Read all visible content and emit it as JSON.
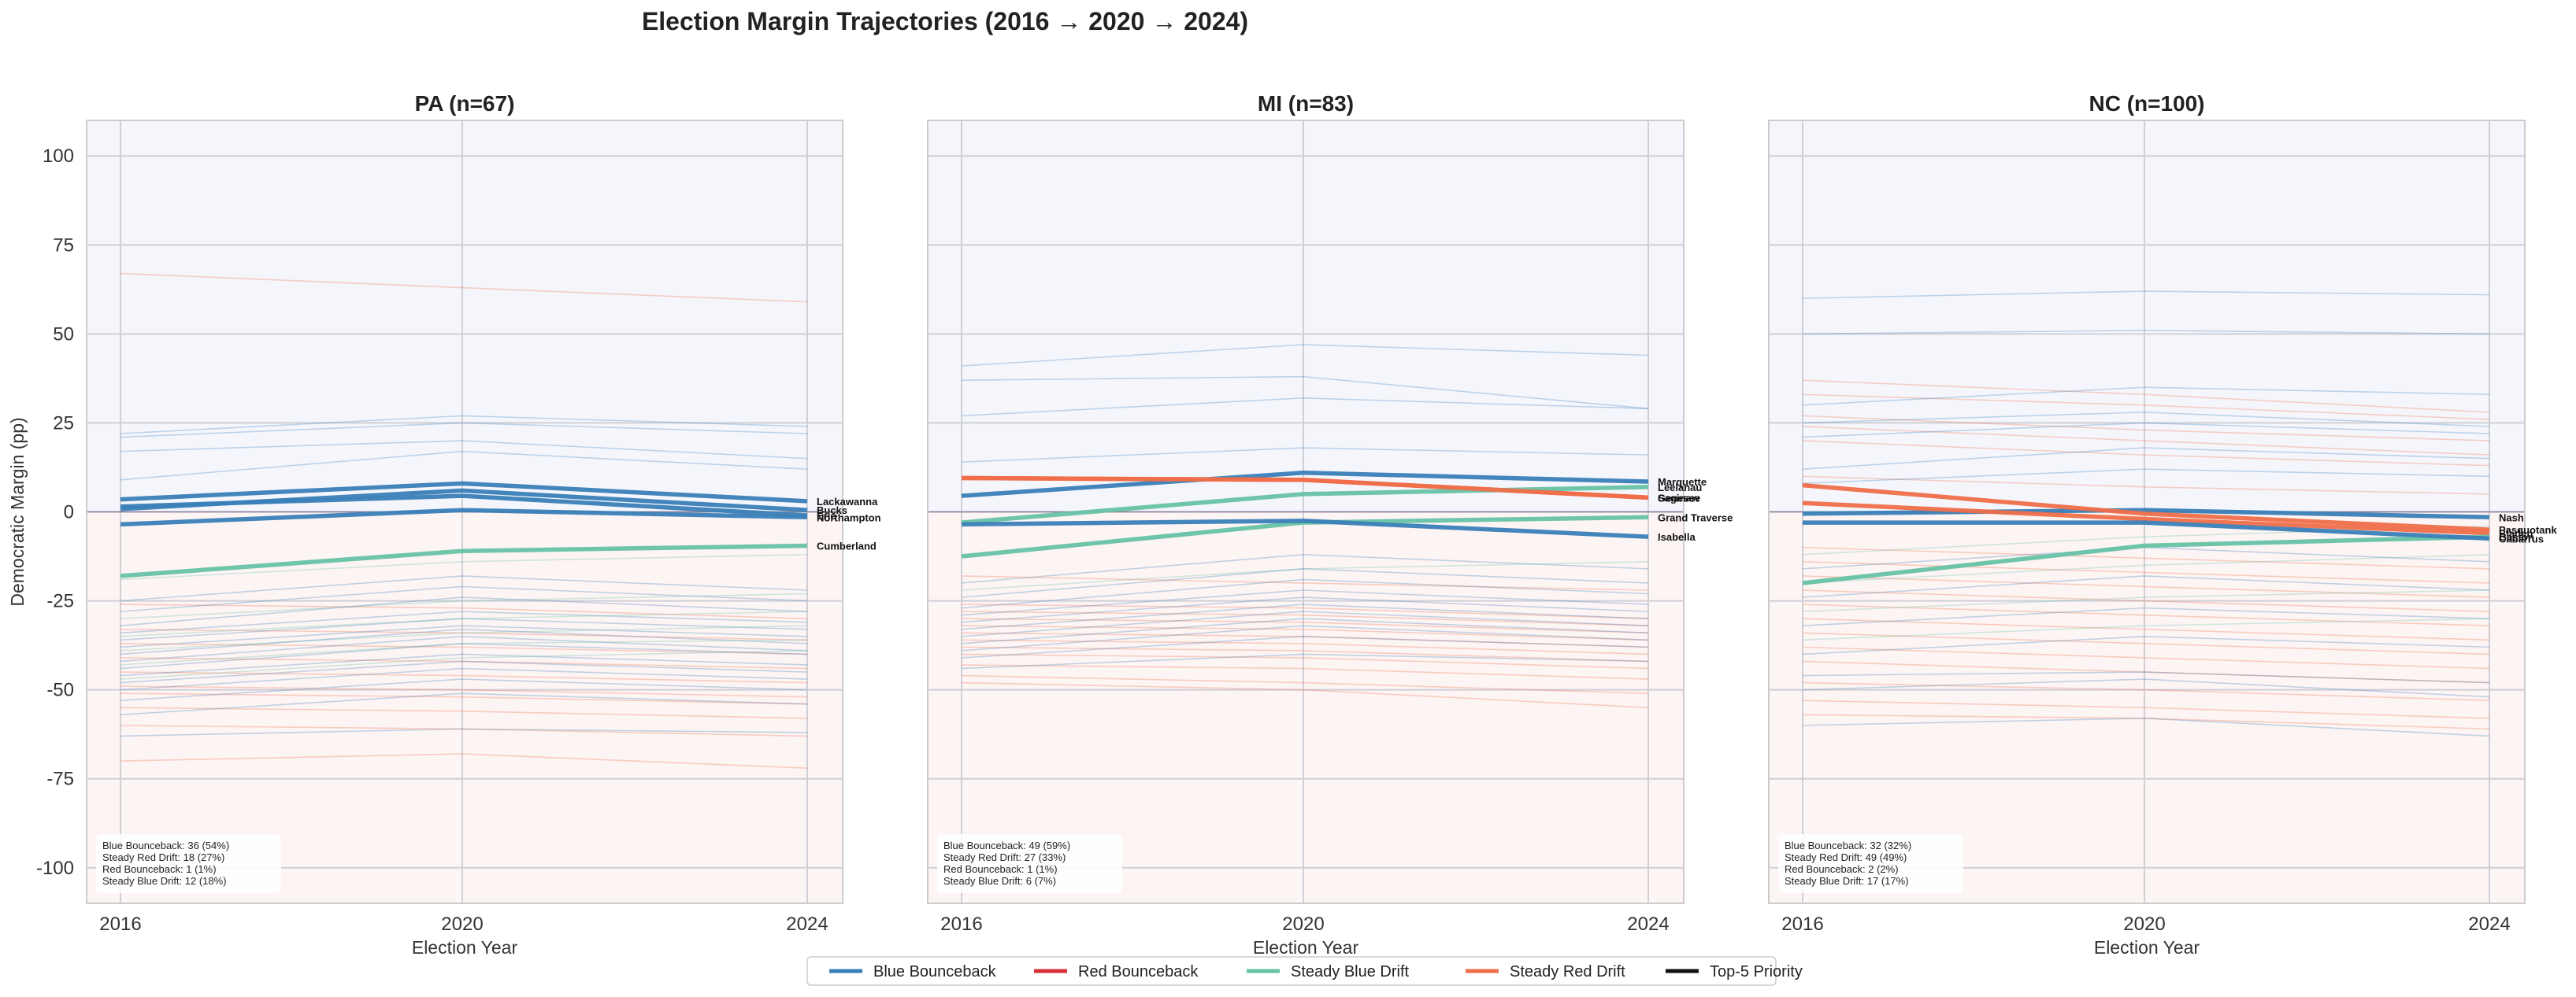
{
  "figure": {
    "title": "Election Margin Trajectories (2016 → 2020 → 2024)"
  },
  "legend": {
    "items": [
      {
        "label": "Blue Bounceback",
        "color": "#3a7fb8"
      },
      {
        "label": "Red Bounceback",
        "color": "#d6313a"
      },
      {
        "label": "Steady Blue Drift",
        "color": "#66c2a5"
      },
      {
        "label": "Steady Red Drift",
        "color": "#ef6e4a"
      },
      {
        "label": "Top-5 Priority",
        "color": "#111111"
      }
    ]
  },
  "chart_data": [
    {
      "type": "line",
      "title": "PA (n=67)",
      "xlabel": "Election Year",
      "ylabel": "Democratic Margin (pp)",
      "x": [
        2016,
        2020,
        2024
      ],
      "ylim": [
        -110,
        110
      ],
      "yticks": [
        100,
        75,
        50,
        25,
        0,
        -25,
        -50,
        -75,
        -100
      ],
      "grid": true,
      "summary": [
        "Blue Bounceback: 36 (54%)",
        "Steady Red Drift: 18 (27%)",
        "Red Bounceback: 1 (1%)",
        "Steady Blue Drift: 12 (18%)"
      ],
      "highlighted": [
        {
          "name": "Lackawanna",
          "category": "Blue Bounceback",
          "values": [
            3.5,
            8.0,
            3.0
          ]
        },
        {
          "name": "Bucks",
          "category": "Blue Bounceback",
          "values": [
            0.8,
            6.0,
            0.5
          ]
        },
        {
          "name": "Erie",
          "category": "Blue Bounceback",
          "values": [
            1.5,
            4.5,
            -1.0
          ]
        },
        {
          "name": "Northampton",
          "category": "Blue Bounceback",
          "values": [
            -3.5,
            0.5,
            -1.5
          ]
        },
        {
          "name": "Cumberland",
          "category": "Steady Blue Drift",
          "values": [
            -18.0,
            -11.0,
            -9.5
          ]
        }
      ],
      "background_series": [
        {
          "category": "Steady Red Drift",
          "values": [
            67,
            63,
            59
          ]
        },
        {
          "category": "Blue Bounceback",
          "values": [
            22,
            27,
            24
          ]
        },
        {
          "category": "Blue Bounceback",
          "values": [
            21,
            25,
            22
          ]
        },
        {
          "category": "Blue Bounceback",
          "values": [
            17,
            20,
            15
          ]
        },
        {
          "category": "Blue Bounceback",
          "values": [
            9,
            17,
            12
          ]
        },
        {
          "category": "Steady Blue Drift",
          "values": [
            -19,
            -14,
            -12
          ]
        },
        {
          "category": "Blue Bounceback",
          "values": [
            -25,
            -18,
            -22
          ]
        },
        {
          "category": "Steady Red Drift",
          "values": [
            -26,
            -27,
            -30
          ]
        },
        {
          "category": "Blue Bounceback",
          "values": [
            -28,
            -21,
            -25
          ]
        },
        {
          "category": "Steady Blue Drift",
          "values": [
            -30,
            -25,
            -23
          ]
        },
        {
          "category": "Blue Bounceback",
          "values": [
            -32,
            -24,
            -28
          ]
        },
        {
          "category": "Steady Red Drift",
          "values": [
            -33,
            -34,
            -36
          ]
        },
        {
          "category": "Blue Bounceback",
          "values": [
            -34,
            -28,
            -31
          ]
        },
        {
          "category": "Steady Blue Drift",
          "values": [
            -35,
            -30,
            -28
          ]
        },
        {
          "category": "Blue Bounceback",
          "values": [
            -36,
            -30,
            -33
          ]
        },
        {
          "category": "Steady Red Drift",
          "values": [
            -37,
            -38,
            -40
          ]
        },
        {
          "category": "Blue Bounceback",
          "values": [
            -38,
            -32,
            -35
          ]
        },
        {
          "category": "Steady Blue Drift",
          "values": [
            -39,
            -34,
            -32
          ]
        },
        {
          "category": "Blue Bounceback",
          "values": [
            -40,
            -33,
            -37
          ]
        },
        {
          "category": "Steady Red Drift",
          "values": [
            -41,
            -42,
            -44
          ]
        },
        {
          "category": "Blue Bounceback",
          "values": [
            -42,
            -35,
            -39
          ]
        },
        {
          "category": "Steady Blue Drift",
          "values": [
            -43,
            -37,
            -36
          ]
        },
        {
          "category": "Blue Bounceback",
          "values": [
            -44,
            -37,
            -40
          ]
        },
        {
          "category": "Steady Red Drift",
          "values": [
            -45,
            -46,
            -48
          ]
        },
        {
          "category": "Blue Bounceback",
          "values": [
            -46,
            -40,
            -43
          ]
        },
        {
          "category": "Steady Blue Drift",
          "values": [
            -47,
            -41,
            -39
          ]
        },
        {
          "category": "Blue Bounceback",
          "values": [
            -48,
            -42,
            -45
          ]
        },
        {
          "category": "Steady Red Drift",
          "values": [
            -49,
            -50,
            -52
          ]
        },
        {
          "category": "Blue Bounceback",
          "values": [
            -50,
            -44,
            -47
          ]
        },
        {
          "category": "Steady Red Drift",
          "values": [
            -51,
            -52,
            -54
          ]
        },
        {
          "category": "Blue Bounceback",
          "values": [
            -53,
            -47,
            -50
          ]
        },
        {
          "category": "Steady Red Drift",
          "values": [
            -55,
            -56,
            -58
          ]
        },
        {
          "category": "Blue Bounceback",
          "values": [
            -57,
            -51,
            -54
          ]
        },
        {
          "category": "Steady Red Drift",
          "values": [
            -60,
            -61,
            -63
          ]
        },
        {
          "category": "Blue Bounceback",
          "values": [
            -63,
            -61,
            -62
          ]
        },
        {
          "category": "Steady Red Drift",
          "values": [
            -70,
            -68,
            -72
          ]
        }
      ]
    },
    {
      "type": "line",
      "title": "MI (n=83)",
      "xlabel": "Election Year",
      "ylabel": "",
      "x": [
        2016,
        2020,
        2024
      ],
      "ylim": [
        -110,
        110
      ],
      "yticks": [
        100,
        75,
        50,
        25,
        0,
        -25,
        -50,
        -75,
        -100
      ],
      "grid": true,
      "summary": [
        "Blue Bounceback: 49 (59%)",
        "Steady Red Drift: 27 (33%)",
        "Red Bounceback: 1 (1%)",
        "Steady Blue Drift: 6 (7%)"
      ],
      "highlighted": [
        {
          "name": "Marquette",
          "category": "Blue Bounceback",
          "values": [
            4.5,
            11.0,
            8.5
          ]
        },
        {
          "name": "Saginaw",
          "category": "Steady Red Drift",
          "values": [
            9.5,
            9.0,
            4.0
          ]
        },
        {
          "name": "Leelanau",
          "category": "Steady Blue Drift",
          "values": [
            -3.0,
            5.0,
            7.0
          ]
        },
        {
          "name": "Genesee",
          "category": "Steady Red Drift",
          "values": [
            9.5,
            9.0,
            4.0
          ]
        },
        {
          "name": "Grand Traverse",
          "category": "Steady Blue Drift",
          "values": [
            -12.5,
            -3.0,
            -1.5
          ]
        },
        {
          "name": "Isabella",
          "category": "Blue Bounceback",
          "values": [
            -3.5,
            -2.5,
            -7.0
          ]
        }
      ],
      "background_series": [
        {
          "category": "Blue Bounceback",
          "values": [
            41,
            47,
            44
          ]
        },
        {
          "category": "Blue Bounceback",
          "values": [
            37,
            38,
            29
          ]
        },
        {
          "category": "Blue Bounceback",
          "values": [
            27,
            32,
            29
          ]
        },
        {
          "category": "Blue Bounceback",
          "values": [
            14,
            18,
            16
          ]
        },
        {
          "category": "Steady Red Drift",
          "values": [
            -18,
            -20,
            -22
          ]
        },
        {
          "category": "Blue Bounceback",
          "values": [
            -20,
            -12,
            -16
          ]
        },
        {
          "category": "Steady Blue Drift",
          "values": [
            -22,
            -16,
            -14
          ]
        },
        {
          "category": "Blue Bounceback",
          "values": [
            -24,
            -16,
            -20
          ]
        },
        {
          "category": "Steady Red Drift",
          "values": [
            -26,
            -27,
            -30
          ]
        },
        {
          "category": "Blue Bounceback",
          "values": [
            -27,
            -19,
            -23
          ]
        },
        {
          "category": "Steady Red Drift",
          "values": [
            -28,
            -29,
            -32
          ]
        },
        {
          "category": "Blue Bounceback",
          "values": [
            -29,
            -22,
            -26
          ]
        },
        {
          "category": "Steady Red Drift",
          "values": [
            -30,
            -31,
            -34
          ]
        },
        {
          "category": "Blue Bounceback",
          "values": [
            -31,
            -24,
            -28
          ]
        },
        {
          "category": "Steady Red Drift",
          "values": [
            -32,
            -33,
            -36
          ]
        },
        {
          "category": "Blue Bounceback",
          "values": [
            -33,
            -26,
            -30
          ]
        },
        {
          "category": "Steady Red Drift",
          "values": [
            -34,
            -35,
            -38
          ]
        },
        {
          "category": "Blue Bounceback",
          "values": [
            -35,
            -28,
            -32
          ]
        },
        {
          "category": "Steady Red Drift",
          "values": [
            -36,
            -37,
            -40
          ]
        },
        {
          "category": "Blue Bounceback",
          "values": [
            -37,
            -30,
            -34
          ]
        },
        {
          "category": "Steady Red Drift",
          "values": [
            -38,
            -39,
            -42
          ]
        },
        {
          "category": "Blue Bounceback",
          "values": [
            -39,
            -32,
            -36
          ]
        },
        {
          "category": "Steady Red Drift",
          "values": [
            -40,
            -41,
            -44
          ]
        },
        {
          "category": "Blue Bounceback",
          "values": [
            -41,
            -35,
            -38
          ]
        },
        {
          "category": "Steady Red Drift",
          "values": [
            -43,
            -44,
            -47
          ]
        },
        {
          "category": "Blue Bounceback",
          "values": [
            -44,
            -40,
            -42
          ]
        },
        {
          "category": "Steady Red Drift",
          "values": [
            -46,
            -48,
            -51
          ]
        },
        {
          "category": "Steady Red Drift",
          "values": [
            -48,
            -50,
            -55
          ]
        }
      ]
    },
    {
      "type": "line",
      "title": "NC (n=100)",
      "xlabel": "Election Year",
      "ylabel": "",
      "x": [
        2016,
        2020,
        2024
      ],
      "ylim": [
        -110,
        110
      ],
      "yticks": [
        100,
        75,
        50,
        25,
        0,
        -25,
        -50,
        -75,
        -100
      ],
      "grid": true,
      "summary": [
        "Blue Bounceback: 32 (32%)",
        "Steady Red Drift: 49 (49%)",
        "Red Bounceback: 2 (2%)",
        "Steady Blue Drift: 17 (17%)"
      ],
      "highlighted": [
        {
          "name": "Nash",
          "category": "Blue Bounceback",
          "values": [
            -0.5,
            0.5,
            -1.5
          ]
        },
        {
          "name": "Pasquotank",
          "category": "Steady Red Drift",
          "values": [
            7.5,
            -0.5,
            -5.0
          ]
        },
        {
          "name": "Bladen",
          "category": "Steady Red Drift",
          "values": [
            2.5,
            -2.0,
            -6.0
          ]
        },
        {
          "name": "Gaston",
          "category": "Steady Blue Drift",
          "values": [
            -20.0,
            -9.5,
            -7.0
          ]
        },
        {
          "name": "Cabarrus",
          "category": "Blue Bounceback",
          "values": [
            -3.0,
            -3.0,
            -7.5
          ]
        }
      ],
      "background_series": [
        {
          "category": "Blue Bounceback",
          "values": [
            60,
            62,
            61
          ]
        },
        {
          "category": "Blue Bounceback",
          "values": [
            50,
            51,
            50
          ]
        },
        {
          "category": "Steady Red Drift",
          "values": [
            37,
            33,
            28
          ]
        },
        {
          "category": "Steady Red Drift",
          "values": [
            33,
            30,
            26
          ]
        },
        {
          "category": "Blue Bounceback",
          "values": [
            30,
            35,
            33
          ]
        },
        {
          "category": "Steady Red Drift",
          "values": [
            27,
            23,
            20
          ]
        },
        {
          "category": "Blue Bounceback",
          "values": [
            25,
            28,
            24
          ]
        },
        {
          "category": "Steady Red Drift",
          "values": [
            24,
            20,
            16
          ]
        },
        {
          "category": "Blue Bounceback",
          "values": [
            21,
            25,
            22
          ]
        },
        {
          "category": "Steady Red Drift",
          "values": [
            20,
            16,
            13
          ]
        },
        {
          "category": "Blue Bounceback",
          "values": [
            12,
            18,
            15
          ]
        },
        {
          "category": "Steady Red Drift",
          "values": [
            10,
            7,
            5
          ]
        },
        {
          "category": "Blue Bounceback",
          "values": [
            8,
            12,
            10
          ]
        },
        {
          "category": "Steady Red Drift",
          "values": [
            -10,
            -13,
            -16
          ]
        },
        {
          "category": "Steady Blue Drift",
          "values": [
            -12,
            -7,
            -4
          ]
        },
        {
          "category": "Steady Red Drift",
          "values": [
            -14,
            -17,
            -20
          ]
        },
        {
          "category": "Blue Bounceback",
          "values": [
            -16,
            -10,
            -14
          ]
        },
        {
          "category": "Steady Red Drift",
          "values": [
            -18,
            -21,
            -24
          ]
        },
        {
          "category": "Steady Blue Drift",
          "values": [
            -20,
            -15,
            -12
          ]
        },
        {
          "category": "Steady Red Drift",
          "values": [
            -22,
            -25,
            -28
          ]
        },
        {
          "category": "Blue Bounceback",
          "values": [
            -24,
            -18,
            -22
          ]
        },
        {
          "category": "Steady Red Drift",
          "values": [
            -26,
            -29,
            -32
          ]
        },
        {
          "category": "Steady Blue Drift",
          "values": [
            -28,
            -24,
            -22
          ]
        },
        {
          "category": "Steady Red Drift",
          "values": [
            -30,
            -33,
            -36
          ]
        },
        {
          "category": "Blue Bounceback",
          "values": [
            -32,
            -27,
            -30
          ]
        },
        {
          "category": "Steady Red Drift",
          "values": [
            -34,
            -37,
            -40
          ]
        },
        {
          "category": "Steady Blue Drift",
          "values": [
            -36,
            -32,
            -30
          ]
        },
        {
          "category": "Steady Red Drift",
          "values": [
            -38,
            -41,
            -44
          ]
        },
        {
          "category": "Blue Bounceback",
          "values": [
            -40,
            -35,
            -38
          ]
        },
        {
          "category": "Steady Red Drift",
          "values": [
            -42,
            -45,
            -48
          ]
        },
        {
          "category": "Blue Bounceback",
          "values": [
            -46,
            -45,
            -48
          ]
        },
        {
          "category": "Steady Red Drift",
          "values": [
            -48,
            -50,
            -53
          ]
        },
        {
          "category": "Blue Bounceback",
          "values": [
            -50,
            -47,
            -52
          ]
        },
        {
          "category": "Steady Red Drift",
          "values": [
            -53,
            -55,
            -58
          ]
        },
        {
          "category": "Steady Red Drift",
          "values": [
            -57,
            -58,
            -61
          ]
        },
        {
          "category": "Blue Bounceback",
          "values": [
            -60,
            -58,
            -63
          ]
        }
      ]
    }
  ]
}
